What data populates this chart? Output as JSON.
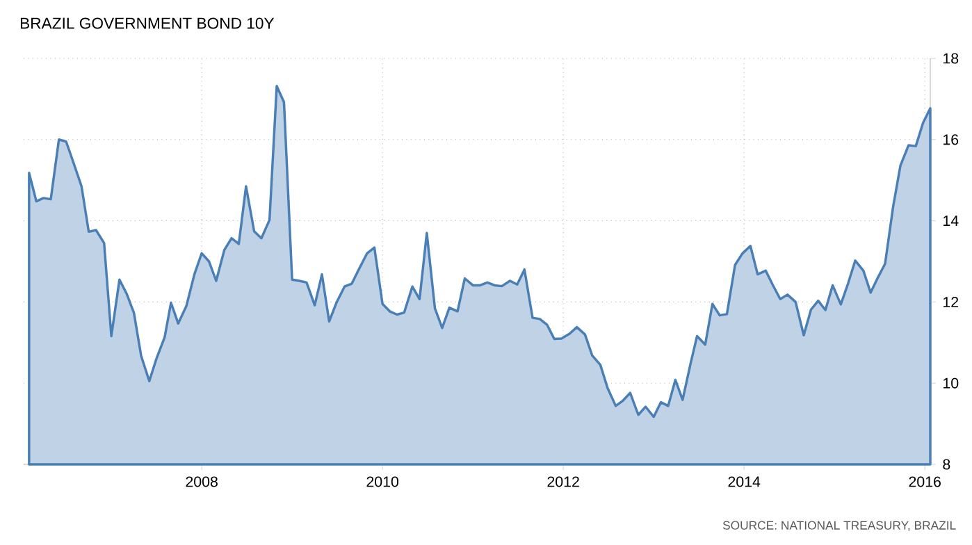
{
  "chart_data": {
    "type": "area",
    "title": "BRAZIL GOVERNMENT BOND 10Y",
    "annotations": [
      "SOURCE: NATIONAL TREASURY, BRAZIL"
    ],
    "x": [
      2006.09,
      2006.17,
      2006.25,
      2006.33,
      2006.42,
      2006.5,
      2006.58,
      2006.67,
      2006.75,
      2006.83,
      2006.92,
      2007.0,
      2007.09,
      2007.17,
      2007.25,
      2007.33,
      2007.42,
      2007.5,
      2007.59,
      2007.66,
      2007.74,
      2007.83,
      2007.92,
      2008.0,
      2008.08,
      2008.16,
      2008.25,
      2008.33,
      2008.41,
      2008.49,
      2008.58,
      2008.66,
      2008.75,
      2008.83,
      2008.91,
      2009.0,
      2009.08,
      2009.16,
      2009.25,
      2009.33,
      2009.41,
      2009.49,
      2009.58,
      2009.66,
      2009.74,
      2009.83,
      2009.91,
      2010.0,
      2010.08,
      2010.16,
      2010.24,
      2010.33,
      2010.41,
      2010.49,
      2010.58,
      2010.66,
      2010.74,
      2010.83,
      2010.91,
      2011.0,
      2011.08,
      2011.16,
      2011.24,
      2011.32,
      2011.41,
      2011.49,
      2011.57,
      2011.66,
      2011.74,
      2011.82,
      2011.9,
      2011.98,
      2012.07,
      2012.15,
      2012.24,
      2012.32,
      2012.41,
      2012.49,
      2012.58,
      2012.66,
      2012.74,
      2012.83,
      2012.91,
      2013.0,
      2013.08,
      2013.16,
      2013.24,
      2013.32,
      2013.41,
      2013.48,
      2013.57,
      2013.65,
      2013.73,
      2013.81,
      2013.9,
      2013.98,
      2014.07,
      2014.15,
      2014.24,
      2014.32,
      2014.4,
      2014.48,
      2014.57,
      2014.66,
      2014.74,
      2014.82,
      2014.9,
      2014.98,
      2015.07,
      2015.15,
      2015.23,
      2015.32,
      2015.4,
      2015.48,
      2015.56,
      2015.65,
      2015.73,
      2015.82,
      2015.9,
      2015.98,
      2016.06
    ],
    "series": [
      {
        "color": "#4a7fb5",
        "values": [
          15.18,
          14.48,
          14.56,
          14.53,
          16.0,
          15.95,
          15.44,
          14.85,
          13.73,
          13.77,
          13.45,
          11.16,
          12.55,
          12.2,
          11.73,
          10.67,
          10.05,
          10.61,
          11.13,
          11.98,
          11.47,
          11.9,
          12.69,
          13.2,
          13.0,
          12.52,
          13.28,
          13.57,
          13.43,
          14.85,
          13.74,
          13.57,
          14.02,
          17.32,
          16.92,
          12.55,
          12.52,
          12.48,
          11.92,
          12.68,
          11.52,
          11.98,
          12.38,
          12.45,
          12.81,
          13.2,
          13.34,
          11.95,
          11.77,
          11.69,
          11.74,
          12.38,
          12.07,
          13.7,
          11.84,
          11.36,
          11.86,
          11.77,
          12.58,
          12.41,
          12.41,
          12.48,
          12.41,
          12.39,
          12.52,
          12.43,
          12.8,
          11.61,
          11.58,
          11.44,
          11.09,
          11.1,
          11.22,
          11.38,
          11.2,
          10.68,
          10.45,
          9.88,
          9.44,
          9.57,
          9.76,
          9.22,
          9.42,
          9.17,
          9.53,
          9.44,
          10.08,
          9.59,
          10.5,
          11.16,
          10.95,
          11.95,
          11.67,
          11.7,
          12.91,
          13.19,
          13.38,
          12.68,
          12.77,
          12.41,
          12.07,
          12.18,
          12.0,
          11.18,
          11.81,
          12.03,
          11.8,
          12.41,
          11.94,
          12.45,
          13.02,
          12.77,
          12.23,
          12.6,
          12.94,
          14.36,
          15.36,
          15.86,
          15.84,
          16.41,
          16.77
        ]
      }
    ],
    "xlim": [
      2006.03,
      2016.06
    ],
    "xticks": [
      2008,
      2010,
      2012,
      2014,
      2016
    ],
    "ylim": [
      8,
      18
    ],
    "yticks": [
      8,
      10,
      12,
      14,
      16,
      18
    ],
    "grid": true
  }
}
